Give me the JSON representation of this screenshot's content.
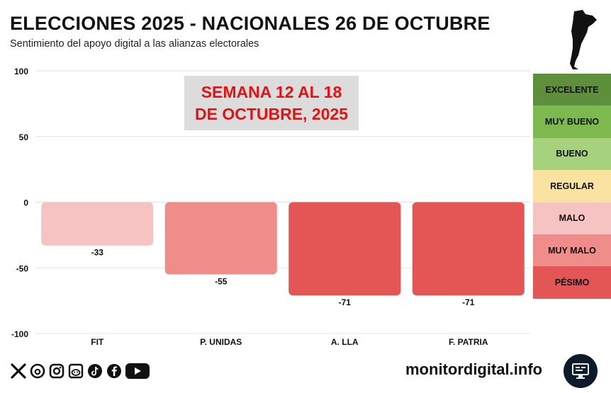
{
  "header": {
    "title": "ELECCIONES 2025 - NACIONALES 26 DE OCTUBRE",
    "subtitle": "Sentimiento del apoyo digital a las alianzas electorales"
  },
  "week_box": {
    "line1": "SEMANA 12 AL 18",
    "line2": "DE OCTUBRE, 2025"
  },
  "legend": {
    "items": [
      {
        "label": "EXCELENTE",
        "color": "#5e8f3b"
      },
      {
        "label": "MUY BUENO",
        "color": "#7db94f"
      },
      {
        "label": "BUENO",
        "color": "#a6d27e"
      },
      {
        "label": "REGULAR",
        "color": "#fae3a0"
      },
      {
        "label": "MALO",
        "color": "#f5c3c2"
      },
      {
        "label": "MUY MALO",
        "color": "#ef8d8b"
      },
      {
        "label": "PÉSIMO",
        "color": "#e45656"
      }
    ]
  },
  "chart_data": {
    "type": "bar",
    "categories": [
      "FIT",
      "P. UNIDAS",
      "A. LLA",
      "F. PATRIA"
    ],
    "values": [
      -33,
      -55,
      -71,
      -71
    ],
    "value_labels": [
      "-33",
      "-55",
      "-71",
      "-71"
    ],
    "bar_colors": [
      "#f5c3c2",
      "#ef8d8b",
      "#e45656",
      "#e45656"
    ],
    "ylim": [
      -100,
      100
    ],
    "yticks": [
      100,
      50,
      0,
      -50,
      -100
    ],
    "ytick_labels": [
      "100",
      "50",
      "0",
      "-50",
      "-100"
    ],
    "grid": true
  },
  "footer": {
    "site": "monitordigital.info",
    "social_icons": [
      "x-icon",
      "threads-icon",
      "instagram-icon",
      "reddit-icon",
      "tiktok-icon",
      "facebook-icon",
      "youtube-icon"
    ]
  }
}
